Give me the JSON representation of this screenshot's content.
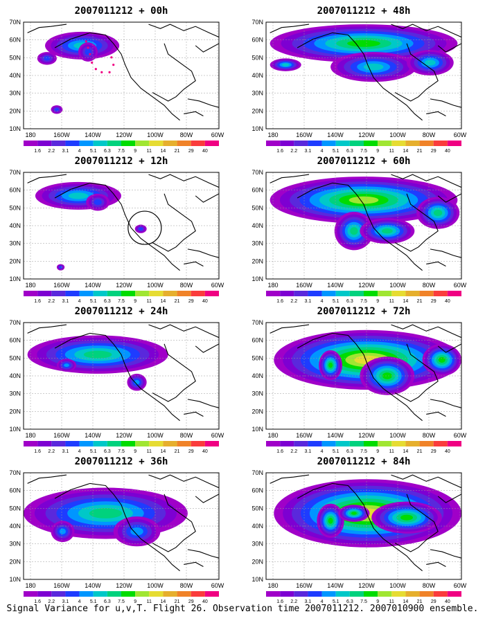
{
  "caption": "Signal Variance for u,v,T. Flight 26. Observation time 2007011212. 2007010900 ensemble.",
  "panels": [
    {
      "title": "2007011212 + 00h",
      "intensity": 0.55
    },
    {
      "title": "2007011212 + 48h",
      "intensity": 0.95
    },
    {
      "title": "2007011212 + 12h",
      "intensity": 0.6
    },
    {
      "title": "2007011212 + 60h",
      "intensity": 1.2
    },
    {
      "title": "2007011212 + 24h",
      "intensity": 0.7
    },
    {
      "title": "2007011212 + 72h",
      "intensity": 1.4
    },
    {
      "title": "2007011212 + 36h",
      "intensity": 0.85
    },
    {
      "title": "2007011212 + 84h",
      "intensity": 1.55
    }
  ],
  "lat_labels": [
    "70N",
    "60N",
    "50N",
    "40N",
    "30N",
    "20N",
    "10N"
  ],
  "lon_labels": [
    "180",
    "160W",
    "140W",
    "120W",
    "100W",
    "80W",
    "60W"
  ],
  "colorbar": {
    "labels": [
      "1.6",
      "2.2",
      "3.1",
      "4",
      "5.1",
      "6.3",
      "7.5",
      "9",
      "11",
      "14",
      "21",
      "29",
      "40"
    ],
    "colors": [
      "#a000c8",
      "#7d00d2",
      "#5a28dc",
      "#1e3cff",
      "#0096ff",
      "#00c8c8",
      "#00d27d",
      "#00dc00",
      "#a0e632",
      "#e6dc32",
      "#e6af2d",
      "#f08228",
      "#fa3c3c",
      "#f00082"
    ]
  }
}
